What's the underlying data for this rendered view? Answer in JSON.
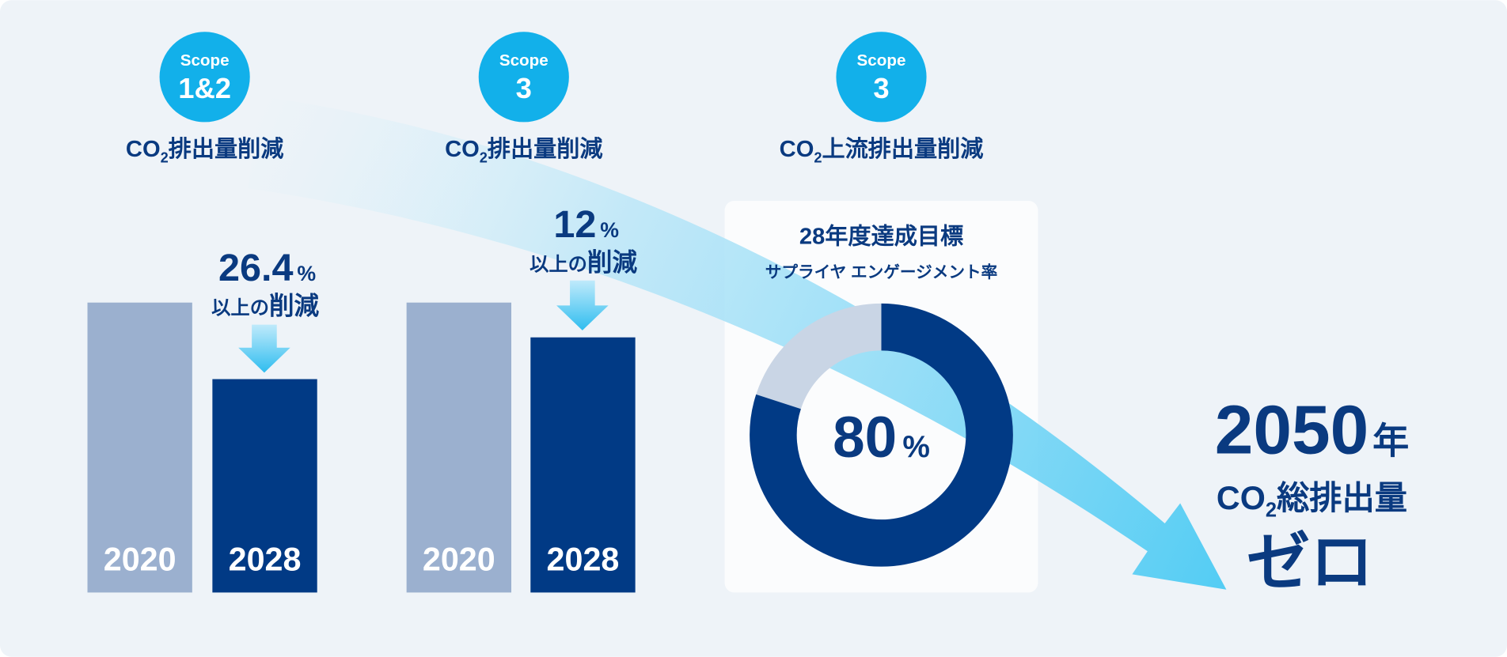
{
  "columns": [
    {
      "badge": {
        "label": "Scope",
        "number": "1&2"
      },
      "heading": {
        "co": "CO",
        "sub": "2",
        "text": "排出量削減"
      },
      "reduction": {
        "value": 26.4,
        "unit": "%",
        "prefix": "以上の",
        "suffix": "削減"
      },
      "bars": [
        {
          "year": "2020",
          "value": 100
        },
        {
          "year": "2028",
          "value": 73.6
        }
      ]
    },
    {
      "badge": {
        "label": "Scope",
        "number": "3"
      },
      "heading": {
        "co": "CO",
        "sub": "2",
        "text": "排出量削減"
      },
      "reduction": {
        "value": 12,
        "unit": "%",
        "prefix": "以上の",
        "suffix": "削減"
      },
      "bars": [
        {
          "year": "2020",
          "value": 100
        },
        {
          "year": "2028",
          "value": 88
        }
      ]
    }
  ],
  "target": {
    "badge": {
      "label": "Scope",
      "number": "3"
    },
    "heading": {
      "co": "CO",
      "sub": "2",
      "text": "上流排出量削減"
    },
    "title": "28年度達成目標",
    "subtitle": "サプライヤ エンゲージメント率",
    "value": 80,
    "unit": "%"
  },
  "goal": {
    "year": "2050",
    "year_suffix": "年",
    "co": "CO",
    "sub": "2",
    "text": "総排出量",
    "result": "ゼロ"
  }
}
